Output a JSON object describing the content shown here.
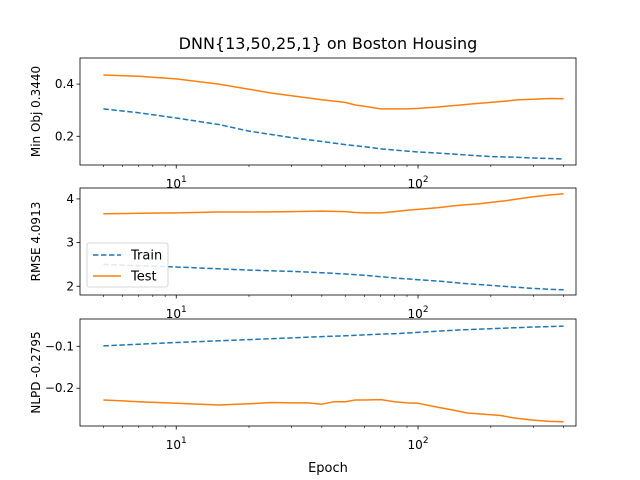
{
  "figure": {
    "title": "DNN{13,50,25,1} on Boston Housing",
    "xlabel": "Epoch"
  },
  "colors": {
    "train": "#1f77b4",
    "test": "#ff7f0e",
    "axes": "#000000",
    "background": "#ffffff"
  },
  "legend": {
    "placement": "left",
    "panel": 1,
    "entries": [
      "Train",
      "Test"
    ]
  },
  "chart_data": [
    {
      "type": "line",
      "ylabel": "Min Obj 0.3440",
      "xscale": "log",
      "xlim": [
        4,
        450
      ],
      "ylim": [
        0.09,
        0.5
      ],
      "xticks": [
        {
          "value": 10,
          "label": "10",
          "exp": "1"
        },
        {
          "value": 100,
          "label": "10",
          "exp": "2"
        }
      ],
      "yticks": [
        {
          "value": 0.2,
          "label": "0.2"
        },
        {
          "value": 0.4,
          "label": "0.4"
        }
      ],
      "series": [
        {
          "name": "Train",
          "style": "dashed",
          "x": [
            5,
            7,
            10,
            15,
            20,
            30,
            40,
            50,
            60,
            70,
            80,
            100,
            120,
            150,
            200,
            250,
            300,
            350,
            400
          ],
          "y": [
            0.305,
            0.29,
            0.27,
            0.245,
            0.22,
            0.195,
            0.18,
            0.168,
            0.16,
            0.152,
            0.147,
            0.14,
            0.136,
            0.13,
            0.122,
            0.12,
            0.117,
            0.115,
            0.113
          ]
        },
        {
          "name": "Test",
          "style": "solid",
          "x": [
            5,
            7,
            10,
            15,
            20,
            25,
            30,
            40,
            50,
            55,
            60,
            70,
            80,
            90,
            100,
            110,
            120,
            130,
            150,
            170,
            200,
            230,
            260,
            300,
            350,
            400
          ],
          "y": [
            0.435,
            0.43,
            0.42,
            0.4,
            0.38,
            0.365,
            0.355,
            0.34,
            0.33,
            0.32,
            0.315,
            0.305,
            0.305,
            0.305,
            0.307,
            0.31,
            0.312,
            0.315,
            0.32,
            0.325,
            0.33,
            0.335,
            0.34,
            0.342,
            0.345,
            0.344
          ]
        }
      ]
    },
    {
      "type": "line",
      "ylabel": "RMSE 4.0913",
      "xscale": "log",
      "xlim": [
        4,
        450
      ],
      "ylim": [
        1.8,
        4.25
      ],
      "xticks": [
        {
          "value": 10,
          "label": "10",
          "exp": "1"
        },
        {
          "value": 100,
          "label": "10",
          "exp": "2"
        }
      ],
      "yticks": [
        {
          "value": 2,
          "label": "2"
        },
        {
          "value": 3,
          "label": "3"
        },
        {
          "value": 4,
          "label": "4"
        }
      ],
      "series": [
        {
          "name": "Train",
          "style": "dashed",
          "x": [
            5,
            7,
            10,
            15,
            20,
            30,
            40,
            50,
            60,
            70,
            80,
            100,
            120,
            150,
            200,
            250,
            300,
            350,
            400
          ],
          "y": [
            2.5,
            2.47,
            2.44,
            2.4,
            2.37,
            2.34,
            2.31,
            2.28,
            2.25,
            2.22,
            2.19,
            2.15,
            2.12,
            2.07,
            2.02,
            1.98,
            1.95,
            1.93,
            1.92
          ]
        },
        {
          "name": "Test",
          "style": "solid",
          "x": [
            5,
            7,
            10,
            15,
            20,
            30,
            40,
            50,
            55,
            60,
            70,
            80,
            90,
            100,
            120,
            140,
            160,
            180,
            200,
            230,
            260,
            300,
            350,
            400
          ],
          "y": [
            3.66,
            3.67,
            3.68,
            3.7,
            3.7,
            3.71,
            3.72,
            3.71,
            3.69,
            3.68,
            3.68,
            3.71,
            3.74,
            3.76,
            3.8,
            3.84,
            3.87,
            3.89,
            3.92,
            3.96,
            4.0,
            4.05,
            4.09,
            4.12
          ]
        }
      ]
    },
    {
      "type": "line",
      "ylabel": "NLPD -0.2795",
      "xlabel": "Epoch",
      "xscale": "log",
      "xlim": [
        4,
        450
      ],
      "ylim": [
        -0.29,
        -0.035
      ],
      "xticks": [
        {
          "value": 10,
          "label": "10",
          "exp": "1"
        },
        {
          "value": 100,
          "label": "10",
          "exp": "2"
        }
      ],
      "yticks": [
        {
          "value": -0.1,
          "label": "−0.1"
        },
        {
          "value": -0.2,
          "label": "−0.2"
        }
      ],
      "series": [
        {
          "name": "Train",
          "style": "dashed",
          "x": [
            5,
            7,
            10,
            15,
            20,
            30,
            40,
            50,
            60,
            70,
            80,
            100,
            120,
            150,
            200,
            250,
            300,
            350,
            400
          ],
          "y": [
            -0.099,
            -0.095,
            -0.091,
            -0.087,
            -0.084,
            -0.08,
            -0.077,
            -0.075,
            -0.073,
            -0.071,
            -0.07,
            -0.067,
            -0.064,
            -0.061,
            -0.058,
            -0.056,
            -0.054,
            -0.053,
            -0.052
          ]
        },
        {
          "name": "Test",
          "style": "solid",
          "x": [
            5,
            7,
            10,
            15,
            20,
            25,
            30,
            35,
            40,
            45,
            50,
            55,
            60,
            70,
            80,
            90,
            100,
            120,
            140,
            160,
            200,
            220,
            250,
            300,
            350,
            400
          ],
          "y": [
            -0.228,
            -0.232,
            -0.236,
            -0.24,
            -0.237,
            -0.234,
            -0.235,
            -0.235,
            -0.238,
            -0.232,
            -0.232,
            -0.228,
            -0.228,
            -0.227,
            -0.232,
            -0.235,
            -0.236,
            -0.245,
            -0.252,
            -0.259,
            -0.263,
            -0.265,
            -0.271,
            -0.276,
            -0.279,
            -0.28
          ]
        }
      ]
    }
  ]
}
